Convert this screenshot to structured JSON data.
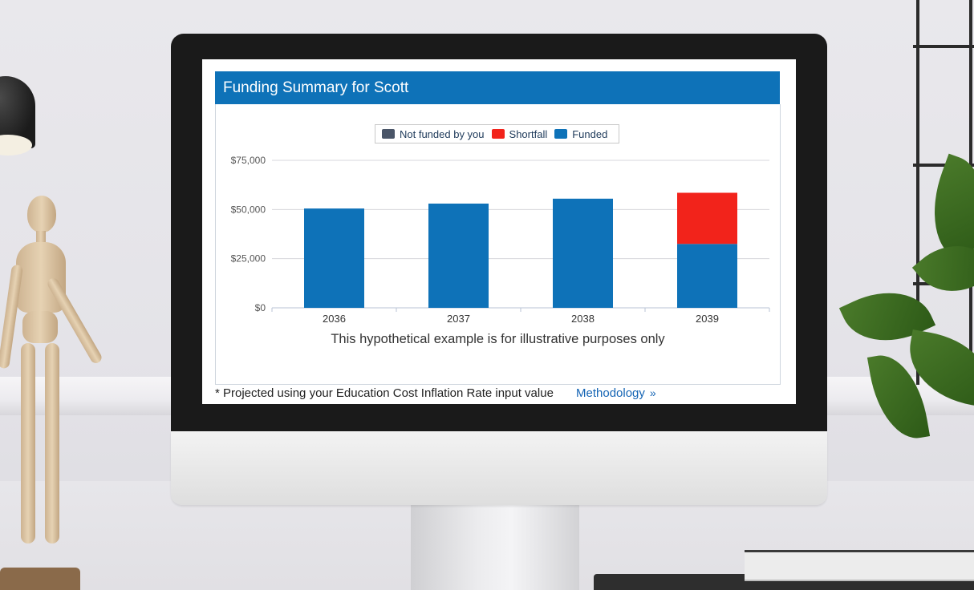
{
  "panel": {
    "title": "Funding Summary for Scott"
  },
  "legend": [
    {
      "label": "Not funded by you",
      "color": "#4a5568"
    },
    {
      "label": "Shortfall",
      "color": "#f2231b"
    },
    {
      "label": "Funded",
      "color": "#0e72b8"
    }
  ],
  "chart_data": {
    "type": "bar",
    "stacked": true,
    "categories": [
      "2036",
      "2037",
      "2038",
      "2039"
    ],
    "series": [
      {
        "name": "Not funded by you",
        "color": "#4a5568",
        "values": [
          0,
          0,
          0,
          0
        ]
      },
      {
        "name": "Funded",
        "color": "#0e72b8",
        "values": [
          50500,
          53000,
          55500,
          32500
        ]
      },
      {
        "name": "Shortfall",
        "color": "#f2231b",
        "values": [
          0,
          0,
          0,
          26000
        ]
      }
    ],
    "yticks": [
      "$0",
      "$25,000",
      "$50,000",
      "$75,000"
    ],
    "ylim": [
      0,
      75000
    ],
    "grid": true,
    "legend_position": "top-center"
  },
  "caption": "This hypothetical example is for illustrative purposes only",
  "footnote": "* Projected using your Education Cost Inflation Rate input value",
  "methodology_link": {
    "label": "Methodology",
    "chevron": "»"
  }
}
